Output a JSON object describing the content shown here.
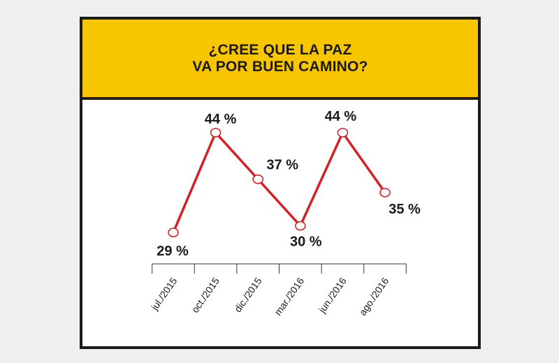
{
  "chart_data": {
    "type": "line",
    "title_lines": [
      "¿CREE QUE LA PAZ",
      "VA POR BUEN CAMINO?"
    ],
    "categories": [
      "jul./2015",
      "oct./2015",
      "dic./2015",
      "mar./2016",
      "jun./2016",
      "ago./2016"
    ],
    "series": [
      {
        "values": [
          29,
          44,
          37,
          30,
          44,
          35
        ],
        "labels": [
          "29 %",
          "44 %",
          "37 %",
          "30 %",
          "44 %",
          "35 %"
        ]
      }
    ],
    "ylim": [
      25,
      47
    ],
    "grid": false,
    "line_color": "#d62027",
    "accent_color": "#f7c600"
  }
}
